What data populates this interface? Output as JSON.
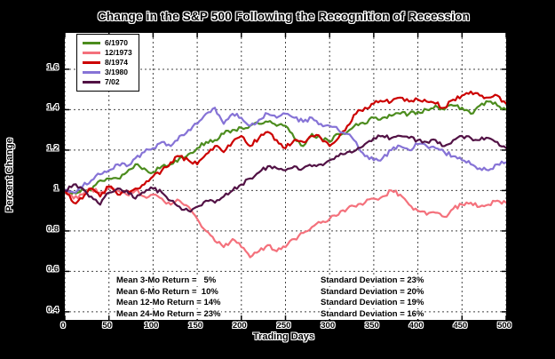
{
  "title": "Change in the S&P 500 Following the Recognition of Recession",
  "colors": {
    "page_background": "#000000",
    "plot_background": "#ffffff",
    "axis": "#000000",
    "grid": "#444444"
  },
  "annotations": {
    "left": [
      "Mean 3-Mo Return =   5%",
      "Mean 6-Mo Return =  10%",
      "Mean 12-Mo Return = 14%",
      "Mean 24-Mo Return = 23%"
    ],
    "right": [
      "Standard Deviation = 23%",
      "Standard Deviation = 20%",
      "Standard Deviation = 19%",
      "Standard Deviation = 16%"
    ]
  },
  "chart_data": {
    "type": "line",
    "title": "Change in the S&P 500 Following the Recognition of Recession",
    "xlabel": "Trading Days",
    "ylabel": "Percent Change",
    "xlim": [
      0,
      500
    ],
    "ylim": [
      0.36,
      1.78
    ],
    "xticks": [
      0,
      50,
      100,
      150,
      200,
      250,
      300,
      350,
      400,
      450,
      500
    ],
    "yticks": [
      0.4,
      0.6,
      0.8,
      1,
      1.2,
      1.4,
      1.6
    ],
    "grid": "dashed-on",
    "legend_position": "top-left",
    "x": [
      0,
      10,
      20,
      30,
      40,
      50,
      60,
      70,
      80,
      90,
      100,
      110,
      120,
      130,
      140,
      150,
      160,
      170,
      180,
      190,
      200,
      210,
      220,
      230,
      240,
      250,
      260,
      270,
      280,
      290,
      300,
      310,
      320,
      330,
      340,
      350,
      360,
      370,
      380,
      390,
      400,
      410,
      420,
      430,
      440,
      450,
      460,
      470,
      480,
      490,
      500
    ],
    "series": [
      {
        "name": "6/1970",
        "color": "#4c8c1e",
        "values": [
          1.0,
          0.99,
          1.01,
          1.0,
          1.05,
          1.06,
          1.06,
          1.09,
          1.13,
          1.11,
          1.09,
          1.12,
          1.13,
          1.16,
          1.18,
          1.21,
          1.24,
          1.25,
          1.28,
          1.3,
          1.31,
          1.32,
          1.33,
          1.34,
          1.32,
          1.32,
          1.26,
          1.22,
          1.28,
          1.26,
          1.24,
          1.28,
          1.29,
          1.33,
          1.33,
          1.36,
          1.36,
          1.37,
          1.38,
          1.38,
          1.39,
          1.4,
          1.42,
          1.4,
          1.42,
          1.41,
          1.38,
          1.42,
          1.44,
          1.42,
          1.4
        ]
      },
      {
        "name": "12/1973",
        "color": "#f4717c",
        "values": [
          1.0,
          0.96,
          0.98,
          1.01,
          0.99,
          1.02,
          1.0,
          0.98,
          1.0,
          0.97,
          0.98,
          0.96,
          0.93,
          0.95,
          0.92,
          0.86,
          0.8,
          0.75,
          0.72,
          0.76,
          0.72,
          0.67,
          0.7,
          0.73,
          0.7,
          0.72,
          0.76,
          0.79,
          0.82,
          0.84,
          0.86,
          0.88,
          0.91,
          0.92,
          0.94,
          0.96,
          0.97,
          1.0,
          0.98,
          0.93,
          0.9,
          0.88,
          0.89,
          0.87,
          0.91,
          0.93,
          0.94,
          0.92,
          0.93,
          0.95,
          0.94
        ]
      },
      {
        "name": "8/1974",
        "color": "#cc0000",
        "values": [
          1.0,
          0.94,
          0.96,
          1.01,
          0.97,
          1.02,
          0.98,
          1.0,
          1.01,
          1.03,
          1.07,
          1.1,
          1.14,
          1.17,
          1.15,
          1.13,
          1.18,
          1.22,
          1.19,
          1.24,
          1.27,
          1.22,
          1.26,
          1.29,
          1.25,
          1.21,
          1.25,
          1.24,
          1.27,
          1.26,
          1.22,
          1.26,
          1.32,
          1.38,
          1.41,
          1.43,
          1.44,
          1.44,
          1.46,
          1.44,
          1.45,
          1.44,
          1.43,
          1.41,
          1.45,
          1.47,
          1.49,
          1.47,
          1.46,
          1.47,
          1.43
        ]
      },
      {
        "name": "3/1980",
        "color": "#8673d6",
        "values": [
          1.0,
          0.99,
          1.02,
          1.05,
          1.08,
          1.1,
          1.13,
          1.12,
          1.16,
          1.19,
          1.21,
          1.24,
          1.22,
          1.27,
          1.3,
          1.33,
          1.38,
          1.41,
          1.33,
          1.38,
          1.36,
          1.32,
          1.35,
          1.38,
          1.36,
          1.38,
          1.36,
          1.34,
          1.36,
          1.33,
          1.32,
          1.3,
          1.28,
          1.24,
          1.17,
          1.15,
          1.16,
          1.2,
          1.22,
          1.2,
          1.23,
          1.22,
          1.21,
          1.19,
          1.17,
          1.15,
          1.13,
          1.11,
          1.1,
          1.13,
          1.14
        ]
      },
      {
        "name": "7/02",
        "color": "#521245",
        "values": [
          1.0,
          1.03,
          1.01,
          0.97,
          0.93,
          0.99,
          1.01,
          1.0,
          0.96,
          0.99,
          1.01,
          0.99,
          0.95,
          0.92,
          0.9,
          0.92,
          0.95,
          0.94,
          0.97,
          1.0,
          1.03,
          1.06,
          1.09,
          1.12,
          1.11,
          1.1,
          1.12,
          1.11,
          1.12,
          1.13,
          1.15,
          1.17,
          1.19,
          1.2,
          1.23,
          1.26,
          1.27,
          1.26,
          1.27,
          1.26,
          1.25,
          1.24,
          1.25,
          1.22,
          1.25,
          1.27,
          1.26,
          1.25,
          1.26,
          1.24,
          1.21
        ]
      }
    ]
  }
}
